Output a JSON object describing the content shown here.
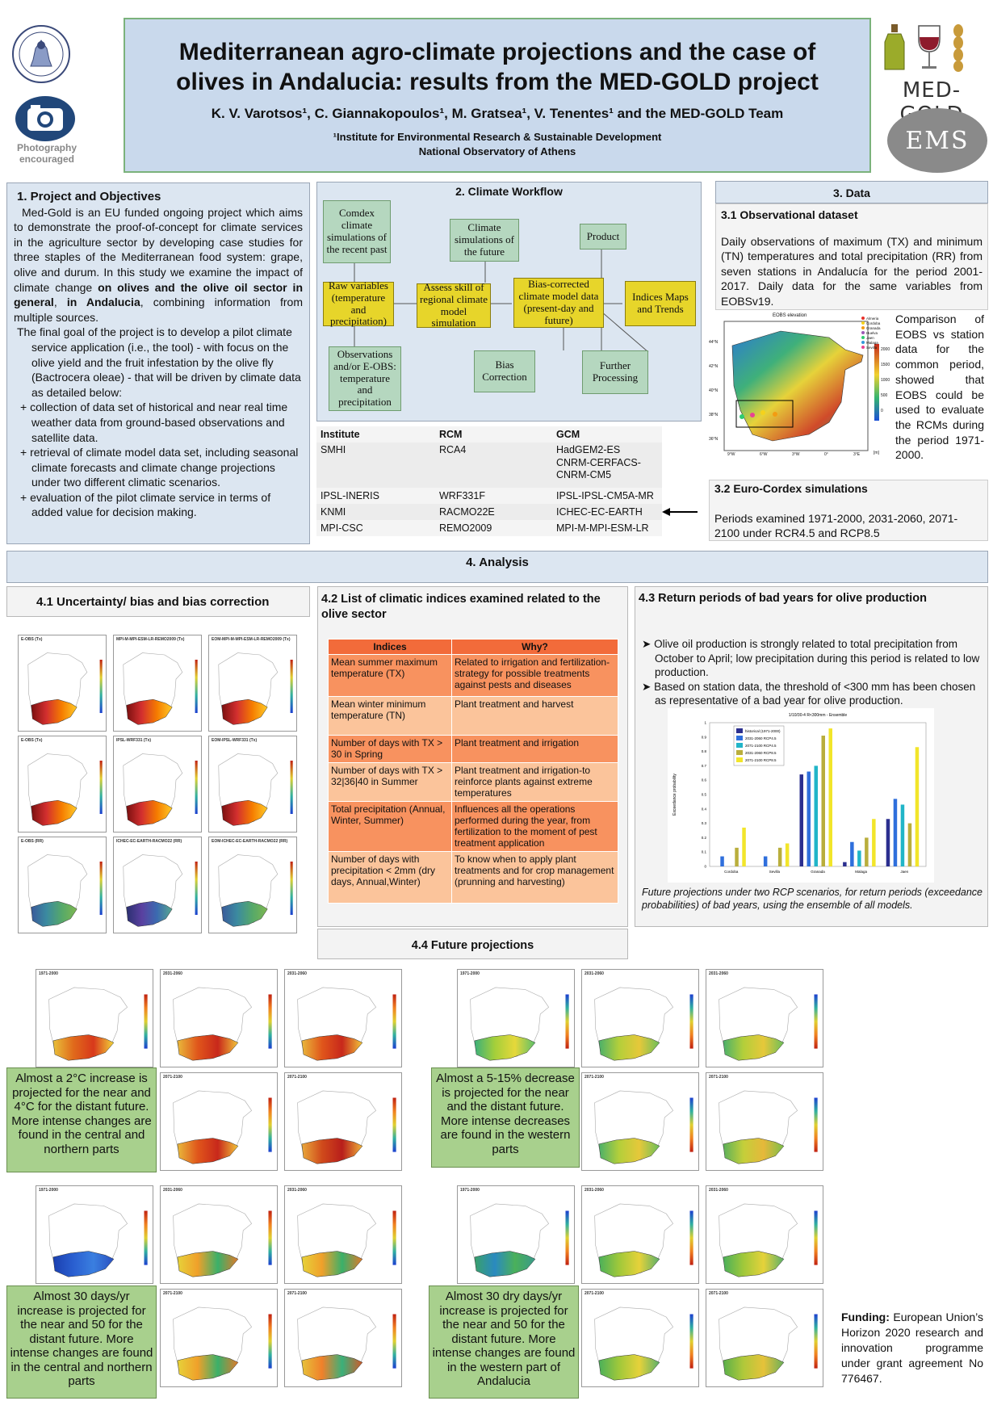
{
  "header": {
    "title_line1": "Mediterranean agro-climate projections and the case of",
    "title_line2": "olives in Andalucia: results from the MED-GOLD project",
    "authors": "K. V. Varotsos¹, C. Giannakopoulos¹, M. Gratsea¹, V. Tenentes¹ and the MED-GOLD Team",
    "affiliation_line1": "¹Institute for Environmental Research & Sustainable Development",
    "affiliation_line2": "National Observatory of Athens",
    "photo_line1": "Photography",
    "photo_line2": "encouraged",
    "medgold_logo_text": "MED-GOLD",
    "ems_logo_text": "EMS",
    "icons": [
      "observatory-seal-icon",
      "camera-icon",
      "olive-oil-bottle-icon",
      "wine-glass-icon",
      "wheat-icon"
    ],
    "colors": {
      "header_bg": "#c9d9ec",
      "border": "#7bb27b"
    }
  },
  "section1": {
    "heading": "1.  Project and Objectives",
    "para1_a": "Med-Gold is an EU funded ongoing project which aims to demonstrate the proof-of-concept for climate services in the agriculture sector by developing case studies for three staples of the Mediterranean food system: grape, olive and durum. In this study we examine the impact of climate change ",
    "para1_b": "on olives and the olive oil sector in general",
    "para1_c": ", ",
    "para1_d": "in Andalucia",
    "para1_e": ", combining information from multiple sources.",
    "para2": "The final goal of the project is to develop a pilot climate service application (i.e., the tool) - with focus on the olive yield and the fruit infestation by the olive fly (Bactrocera oleae) - that will be driven by climate data as detailed below:",
    "bullets": [
      "collection of data set of historical and near real time weather data from ground-based observations and satellite data.",
      "retrieval of climate model data set, including seasonal climate forecasts and climate change projections under two different climatic scenarios.",
      "evaluation of the pilot climate service in terms of added value for decision making."
    ],
    "bullet_symbol": "+"
  },
  "section2": {
    "heading": "2. Climate Workflow",
    "boxes": {
      "comdex": "Comdex climate simulations of the recent past",
      "raw": "Raw variables (temperature and precipitation)",
      "obs": "Observations and/or E-OBS: temperature and precipitation",
      "future": "Climate simulations of the future",
      "assess": "Assess skill of regional climate model simulation",
      "bias": "Bias Correction",
      "product": "Product",
      "biascorr": "Bias-corrected climate model data (present-day and future)",
      "indices": "Indices Maps and Trends",
      "further": "Further Processing"
    },
    "table": {
      "headers": [
        "Institute",
        "RCM",
        "GCM"
      ],
      "rows": [
        [
          "SMHI",
          "RCA4",
          "HadGEM2-ES"
        ],
        [
          "",
          "",
          "CNRM-CERFACS-CNRM-CM5"
        ],
        [
          "IPSL-INERIS",
          "WRF331F",
          "IPSL-IPSL-CM5A-MR"
        ],
        [
          "KNMI",
          "RACMO22E",
          "ICHEC-EC-EARTH"
        ],
        [
          "MPI-CSC",
          "REMO2009",
          "MPI-M-MPI-ESM-LR"
        ]
      ]
    }
  },
  "section3": {
    "heading": "3. Data",
    "sub1_heading": "3.1 Observational dataset",
    "sub1_text": "Daily observations of maximum (TX) and minimum (TN) temperatures and total precipitation (RR) from seven stations in Andalucía for the period 2001-2017. Daily data for the same variables from EOBSv19.",
    "map_title": "EOBS elevation",
    "map_legend": [
      "Almeria",
      "Cordoba",
      "Granada",
      "Huelva",
      "Jaen",
      "Malaga",
      "Sevilla"
    ],
    "map_legend_colors": [
      "#e8322b",
      "#f5d21c",
      "#f39c12",
      "#9b59b6",
      "#2ecc71",
      "#3498db",
      "#e84393"
    ],
    "map_ticks_lat": [
      "44°N",
      "42°N",
      "40°N",
      "38°N",
      "36°N"
    ],
    "map_ticks_lon": [
      "9°W",
      "6°W",
      "3°W",
      "0°",
      "3°E"
    ],
    "map_colorbar_ticks": [
      "2000",
      "1500",
      "1000",
      "500",
      "0"
    ],
    "map_colorbar_unit": "[m]",
    "comparison_text": "Comparison of EOBS vs station data for the common period, showed that EOBS could be used to evaluate the RCMs during the period 1971-2000.",
    "sub2_heading": "3.2 Euro-Cordex simulations",
    "sub2_text": "Periods examined 1971-2000, 2031-2060, 2071-2100 under RCR4.5 and RCP8.5"
  },
  "section4": {
    "heading": "4. Analysis",
    "sub41_heading": "4.1 Uncertainty/ bias and bias correction",
    "sub41_map_titles": [
      "E-OBS (Tx)",
      "MPI-M-MPI-ESM-LR-REMO2009 (Tx)",
      "EOM-MPI-M-MPI-ESM-LR-REMO2009 (Tx)",
      "E-OBS (Tx)",
      "IPSL-WRF331 (Tx)",
      "EOM-IPSL-WRF331 (Tx)",
      "E-OBS (RR)",
      "ICHEC-EC-EARTH-RACMO22 (RR)",
      "EOM-ICHEC-EC-EARTH-RACMO22 (RR)"
    ],
    "sub42_heading": "4.2 List of climatic indices examined related to the olive sector",
    "indices_table": {
      "headers": [
        "Indices",
        "Why?"
      ],
      "rows": [
        [
          "Mean summer maximum temperature (TX)",
          "Related to irrigation and fertilization-strategy for possible treatments against pests and diseases"
        ],
        [
          "Mean winter minimum temperature (TN)",
          "Plant treatment and harvest"
        ],
        [
          "Number of days with TX > 30 in Spring",
          "Plant treatment and irrigation"
        ],
        [
          "Number of days with TX > 32|36|40 in Summer",
          "Plant treatment and irrigation-to reinforce plants against extreme temperatures"
        ],
        [
          "Total precipitation (Annual, Winter, Summer)",
          "Influences all the operations performed during the year, from fertilization to the moment of pest treatment application"
        ],
        [
          "Number of days with precipitation < 2mm (dry days, Annual,Winter)",
          "To know when to apply plant treatments and for crop management (prunning and harvesting)"
        ]
      ],
      "colors": {
        "header": "#f26b3a",
        "dark": "#f8925f",
        "light": "#fbc49b"
      }
    },
    "sub43_heading": "4.3 Return periods of bad years for olive production",
    "sub43_bullet1": "Olive oil production is strongly related to total precipitation from October to April; low precipitation during this period is related to low production.",
    "sub43_bullet2": "Based on station data, the threshold of <300 mm has been chosen as representative of a bad year for olive production.",
    "sub43_caption": "Future projections under two RCP scenarios, for return periods (exceedance probabilities) of bad years, using the ensemble of all models.",
    "sub44_heading": "4.4 Future projections",
    "proj_period_labels": [
      "1971-2000",
      "2031-2060",
      "2031-2060",
      "2071-2100",
      "2071-2100"
    ],
    "green_boxes": [
      "Almost a 2°C increase is projected for the near and 4°C for the distant future. More intense changes are found in the central and northern parts",
      "Almost a 5-15% decrease is projected for the near and the distant future. More intense decreases are found in the western parts",
      "Almost 30 days/yr increase is projected for the near and 50 for the distant future. More intense changes are found in the central and northern parts",
      "Almost 30 dry days/yr increase is projected for the near and 50 for the distant future. More intense changes are found in the western part of Andalucia"
    ]
  },
  "funding": {
    "label": "Funding:",
    "text": " European Union’s Horizon 2020 research and innovation programme under grant agreement No 776467."
  },
  "chart_data": {
    "type": "bar",
    "title": "1/10/30-4 R<300mm - Ensemble",
    "ylabel": "Exceedance probability",
    "xlabel": "",
    "categories": [
      "Cordoba",
      "Sevilla",
      "Granada",
      "Malaga",
      "Jaen"
    ],
    "ylim": [
      0,
      1
    ],
    "yticks": [
      "0",
      "0.1",
      "0.2",
      "0.3",
      "0.4",
      "0.5",
      "0.6",
      "0.7",
      "0.8",
      "0.9",
      "1"
    ],
    "grid": false,
    "legend_position": "top-left",
    "series": [
      {
        "name": "historical (1971-2000)",
        "color": "#2b2f8f",
        "values": [
          0.0,
          0.0,
          0.64,
          0.03,
          0.33
        ]
      },
      {
        "name": "2031-2060 RCP4.5",
        "color": "#2f6fdc",
        "values": [
          0.07,
          0.07,
          0.66,
          0.17,
          0.47
        ]
      },
      {
        "name": "2071-2100 RCP4.5",
        "color": "#21b5c8",
        "values": [
          0.0,
          0.0,
          0.7,
          0.11,
          0.43
        ]
      },
      {
        "name": "2031-2060 RCP8.5",
        "color": "#b9ae3c",
        "values": [
          0.13,
          0.13,
          0.91,
          0.2,
          0.3
        ]
      },
      {
        "name": "2071-2100 RCP8.5",
        "color": "#f2e52a",
        "values": [
          0.27,
          0.16,
          0.96,
          0.33,
          0.83
        ]
      }
    ]
  }
}
